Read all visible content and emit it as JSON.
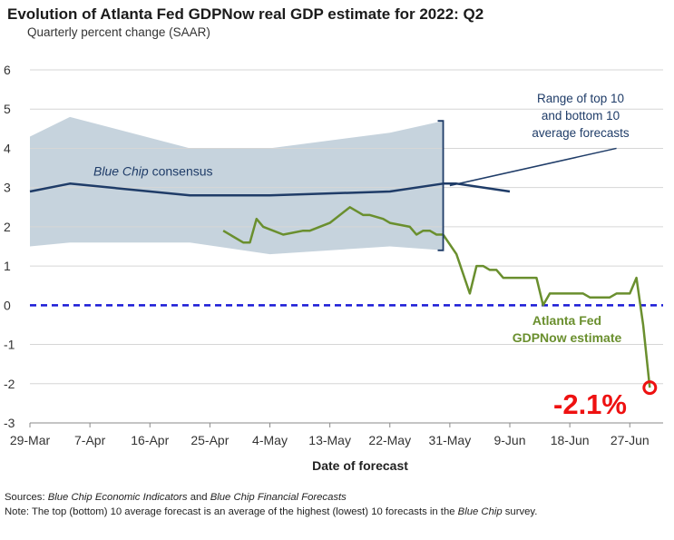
{
  "title": "Evolution of Atlanta Fed GDPNow real GDP estimate for 2022: Q2",
  "subtitle": "Quarterly percent change (SAAR)",
  "sources": {
    "label": "Sources:",
    "part1": "Blue Chip Economic Indicators",
    "part2": " and ",
    "part3": "Blue Chip Financial Forecasts"
  },
  "note": {
    "label": "Note:",
    "part1": " The top (bottom) 10 average forecast is an average of the highest (lowest) 10 forecasts in the ",
    "part2": "Blue Chip",
    "part3": " survey."
  },
  "chart_data": {
    "type": "line",
    "xlabel": "Date of forecast",
    "ylabel": "",
    "ylim": [
      -3,
      6
    ],
    "yticks": [
      "6",
      "5",
      "4",
      "3",
      "2",
      "1",
      "0",
      "-1",
      "-2",
      "-3"
    ],
    "xticks": [
      "29-Mar",
      "7-Apr",
      "16-Apr",
      "25-Apr",
      "4-May",
      "13-May",
      "22-May",
      "31-May",
      "9-Jun",
      "18-Jun",
      "27-Jun"
    ],
    "xtick_values": [
      0,
      9,
      18,
      27,
      36,
      45,
      54,
      63,
      72,
      81,
      90
    ],
    "grid": "horizontal",
    "colors": {
      "range_band": "#c6d3dd",
      "consensus": "#1f3c68",
      "gdpnow": "#6a8f2e",
      "zero_line": "#1a1ad6",
      "highlight": "#ee1111",
      "annotation": "#1f3c68"
    },
    "range_band": {
      "x": [
        0,
        6,
        24,
        36,
        54,
        62
      ],
      "upper": [
        4.3,
        4.8,
        4.0,
        4.0,
        4.4,
        4.7
      ],
      "lower": [
        1.5,
        1.6,
        1.6,
        1.3,
        1.5,
        1.4
      ]
    },
    "series": [
      {
        "name": "Blue Chip consensus",
        "x": [
          0,
          6,
          24,
          36,
          54,
          62,
          64,
          72
        ],
        "y": [
          2.9,
          3.1,
          2.8,
          2.8,
          2.9,
          3.1,
          3.1,
          2.9
        ]
      },
      {
        "name": "Atlanta Fed GDPNow estimate",
        "x": [
          29,
          32,
          33,
          34,
          35,
          38,
          41,
          42,
          45,
          48,
          50,
          51,
          53,
          54,
          57,
          58,
          59,
          60,
          61,
          62,
          64,
          66,
          67,
          68,
          69,
          70,
          71,
          72,
          73,
          74,
          75,
          76,
          77,
          78,
          79,
          80,
          81,
          82,
          83,
          84,
          85,
          86,
          87,
          88,
          89,
          90,
          91,
          92,
          93
        ],
        "y": [
          1.9,
          1.6,
          1.6,
          2.2,
          2.0,
          1.8,
          1.9,
          1.9,
          2.1,
          2.5,
          2.3,
          2.3,
          2.2,
          2.1,
          2.0,
          1.8,
          1.9,
          1.9,
          1.8,
          1.8,
          1.3,
          0.3,
          1.0,
          1.0,
          0.9,
          0.9,
          0.7,
          0.7,
          0.7,
          0.7,
          0.7,
          0.7,
          0.0,
          0.3,
          0.3,
          0.3,
          0.3,
          0.3,
          0.3,
          0.2,
          0.2,
          0.2,
          0.2,
          0.3,
          0.3,
          0.3,
          0.7,
          -0.5,
          -2.1
        ]
      }
    ],
    "annotations": {
      "consensus_label": "Blue Chip consensus",
      "range_label": [
        "Range of top 10",
        "and bottom 10",
        "average forecasts"
      ],
      "gdpnow_label": [
        "Atlanta Fed",
        "GDPNow estimate"
      ],
      "last_value_label": "-2.1%",
      "last_value": -2.1
    }
  }
}
